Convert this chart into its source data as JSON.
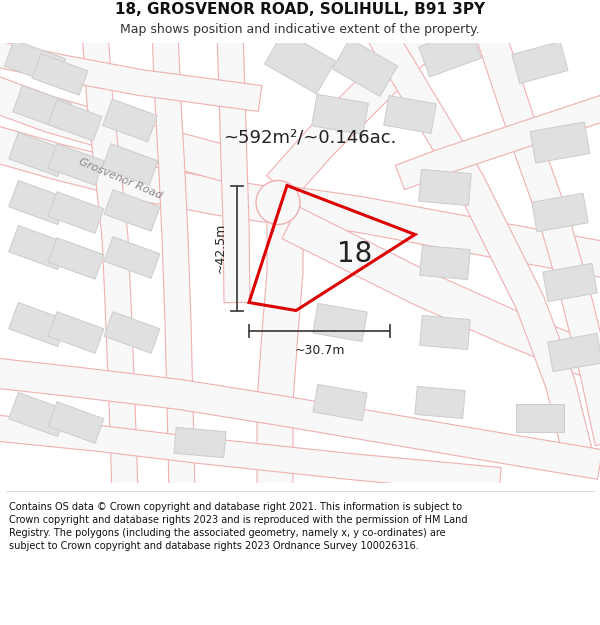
{
  "title_line1": "18, GROSVENOR ROAD, SOLIHULL, B91 3PY",
  "title_line2": "Map shows position and indicative extent of the property.",
  "area_text": "~592m²/~0.146ac.",
  "dim_vertical": "~42.5m",
  "dim_horizontal": "~30.7m",
  "property_label": "18",
  "footer_text": "Contains OS data © Crown copyright and database right 2021. This information is subject to Crown copyright and database rights 2023 and is reproduced with the permission of HM Land Registry. The polygons (including the associated geometry, namely x, y co-ordinates) are subject to Crown copyright and database rights 2023 Ordnance Survey 100026316.",
  "map_bg": "#ffffff",
  "road_line_color": "#f0b0b0",
  "road_fill": "#f8f8f8",
  "building_fill": "#e0e0e0",
  "building_outline": "#cccccc",
  "property_color": "#dd0000",
  "street_label": "Grosvenor Road",
  "title_bg": "#ffffff",
  "footer_bg": "#ffffff",
  "dim_line_color": "#444444",
  "label_color": "#222222"
}
